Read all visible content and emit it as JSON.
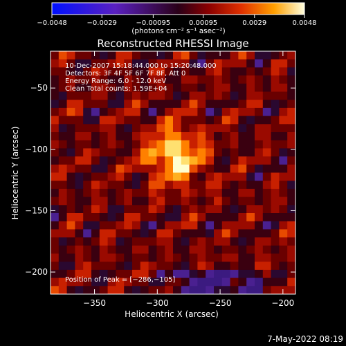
{
  "chart_data": {
    "type": "heatmap",
    "title": "Reconstructed RHESSI Image",
    "xlabel": "Heliocentric X (arcsec)",
    "ylabel": "Heliocentric Y (arcsec)",
    "xlim": [
      -385,
      -190
    ],
    "ylim": [
      -218,
      -20
    ],
    "x_ticks": [
      -350,
      -300,
      -250,
      -200
    ],
    "x_tick_labels": [
      "−350",
      "−300",
      "−250",
      "−200"
    ],
    "y_ticks": [
      -50,
      -100,
      -150,
      -200
    ],
    "y_tick_labels": [
      "−50",
      "−100",
      "−150",
      "−200"
    ],
    "colorbar": {
      "range": [
        -0.0048,
        0.0048
      ],
      "ticks": [
        -0.0048,
        -0.0029,
        -0.00095,
        0.00095,
        0.0029,
        0.0048
      ],
      "tick_labels": [
        "−0.0048",
        "−0.0029",
        "−0.00095",
        "0.00095",
        "0.0029",
        "0.0048"
      ],
      "unit_label": "(photons cm⁻² s⁻¹ asec⁻²)"
    },
    "annotations": {
      "time_range": "10-Dec-2007 15:18:44.000 to 15:20:48.000",
      "detectors": "Detectors: 3F 4F 5F 6F 7F 8F, Att 0",
      "energy": "Energy Range: 6.0 - 12.0 keV",
      "clean": "Clean    Total counts: 1.59E+04",
      "peak": "Position of Peak = [−286,−105]"
    },
    "peak_position": [
      -286,
      -105
    ],
    "total_counts": 15900
  },
  "footer": {
    "date": "7-May-2022 08:19"
  }
}
